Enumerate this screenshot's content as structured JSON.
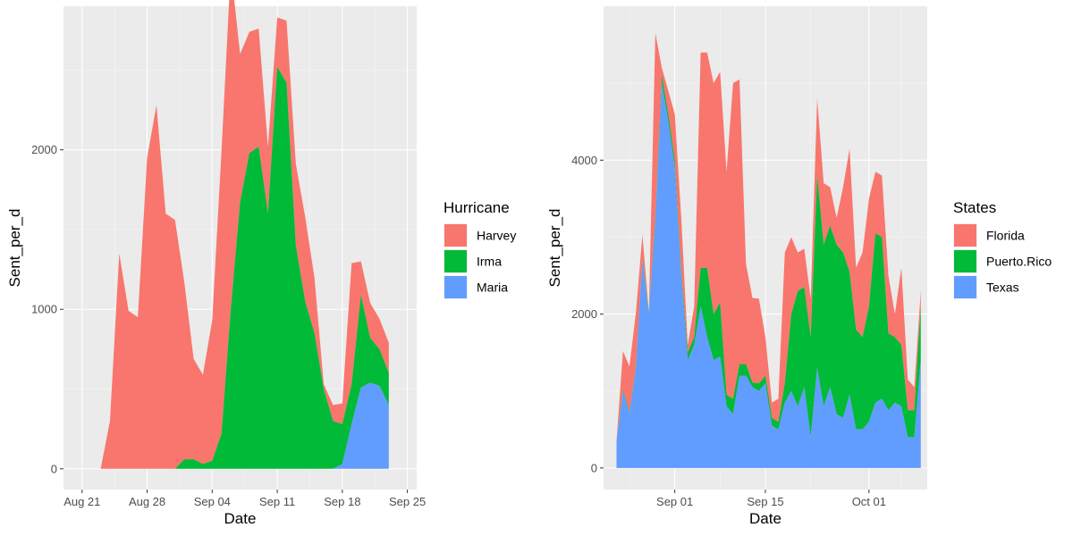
{
  "chart_data": [
    {
      "type": "area",
      "stacked": true,
      "xlabel": "Date",
      "ylabel": "Sent_per_d",
      "legend_title": "Hurricane",
      "legend_position": "right",
      "grid": true,
      "xlim": [
        "2017-08-19",
        "2017-09-26"
      ],
      "ylim": [
        -130,
        2900
      ],
      "x_ticks": [
        {
          "date": "2017-08-21",
          "label": "Aug 21"
        },
        {
          "date": "2017-08-28",
          "label": "Aug 28"
        },
        {
          "date": "2017-09-04",
          "label": "Sep 04"
        },
        {
          "date": "2017-09-11",
          "label": "Sep 11"
        },
        {
          "date": "2017-09-18",
          "label": "Sep 18"
        },
        {
          "date": "2017-09-25",
          "label": "Sep 25"
        }
      ],
      "y_ticks": [
        {
          "value": 0,
          "label": "0"
        },
        {
          "value": 1000,
          "label": "1000"
        },
        {
          "value": 2000,
          "label": "2000"
        }
      ],
      "dates": [
        "2017-08-22",
        "2017-08-23",
        "2017-08-24",
        "2017-08-25",
        "2017-08-26",
        "2017-08-27",
        "2017-08-28",
        "2017-08-29",
        "2017-08-30",
        "2017-08-31",
        "2017-09-01",
        "2017-09-02",
        "2017-09-03",
        "2017-09-04",
        "2017-09-05",
        "2017-09-06",
        "2017-09-07",
        "2017-09-08",
        "2017-09-09",
        "2017-09-10",
        "2017-09-11",
        "2017-09-12",
        "2017-09-13",
        "2017-09-14",
        "2017-09-15",
        "2017-09-16",
        "2017-09-17",
        "2017-09-18",
        "2017-09-19",
        "2017-09-20",
        "2017-09-21",
        "2017-09-22",
        "2017-09-23"
      ],
      "series": [
        {
          "name": "Maria",
          "color": "#619CFF",
          "values": [
            0,
            0,
            0,
            0,
            0,
            0,
            0,
            0,
            0,
            0,
            0,
            0,
            0,
            0,
            0,
            0,
            0,
            0,
            0,
            0,
            0,
            0,
            0,
            0,
            0,
            0,
            0,
            30,
            280,
            510,
            540,
            520,
            400
          ]
        },
        {
          "name": "Irma",
          "color": "#00BA38",
          "values": [
            0,
            0,
            0,
            0,
            0,
            0,
            0,
            0,
            0,
            0,
            60,
            60,
            30,
            50,
            220,
            1000,
            1670,
            1980,
            2020,
            1600,
            2520,
            2420,
            1400,
            1050,
            850,
            500,
            300,
            250,
            250,
            580,
            280,
            230,
            200
          ]
        },
        {
          "name": "Harvey",
          "color": "#F8766D",
          "values": [
            0,
            0,
            300,
            1350,
            990,
            950,
            1950,
            2280,
            1600,
            1560,
            1110,
            630,
            560,
            880,
            1770,
            2140,
            930,
            760,
            740,
            420,
            310,
            390,
            510,
            530,
            350,
            30,
            100,
            130,
            760,
            210,
            220,
            190,
            190
          ]
        }
      ]
    },
    {
      "type": "area",
      "stacked": true,
      "xlabel": "Date",
      "ylabel": "Sent_per_d",
      "legend_title": "States",
      "legend_position": "right",
      "grid": true,
      "xlim": [
        "2017-08-21",
        "2017-10-10"
      ],
      "ylim": [
        -280,
        6000
      ],
      "x_ticks": [
        {
          "date": "2017-09-01",
          "label": "Sep 01"
        },
        {
          "date": "2017-09-15",
          "label": "Sep 15"
        },
        {
          "date": "2017-10-01",
          "label": "Oct 01"
        }
      ],
      "y_ticks": [
        {
          "value": 0,
          "label": "0"
        },
        {
          "value": 2000,
          "label": "2000"
        },
        {
          "value": 4000,
          "label": "4000"
        }
      ],
      "dates": [
        "2017-08-23",
        "2017-08-24",
        "2017-08-25",
        "2017-08-26",
        "2017-08-27",
        "2017-08-28",
        "2017-08-29",
        "2017-08-30",
        "2017-08-31",
        "2017-09-01",
        "2017-09-02",
        "2017-09-03",
        "2017-09-04",
        "2017-09-05",
        "2017-09-06",
        "2017-09-07",
        "2017-09-08",
        "2017-09-09",
        "2017-09-10",
        "2017-09-11",
        "2017-09-12",
        "2017-09-13",
        "2017-09-14",
        "2017-09-15",
        "2017-09-16",
        "2017-09-17",
        "2017-09-18",
        "2017-09-19",
        "2017-09-20",
        "2017-09-21",
        "2017-09-22",
        "2017-09-23",
        "2017-09-24",
        "2017-09-25",
        "2017-09-26",
        "2017-09-27",
        "2017-09-28",
        "2017-09-29",
        "2017-09-30",
        "2017-10-01",
        "2017-10-02",
        "2017-10-03",
        "2017-10-04",
        "2017-10-05",
        "2017-10-06",
        "2017-10-07",
        "2017-10-08",
        "2017-10-09"
      ],
      "series": [
        {
          "name": "Texas",
          "color": "#619CFF",
          "values": [
            350,
            1000,
            700,
            1300,
            2700,
            2000,
            3200,
            5000,
            4500,
            3900,
            2500,
            1400,
            1600,
            2100,
            1700,
            1400,
            1450,
            800,
            700,
            1200,
            1200,
            1050,
            1000,
            1100,
            550,
            500,
            850,
            1000,
            800,
            1050,
            400,
            1300,
            800,
            1050,
            700,
            650,
            950,
            500,
            500,
            600,
            850,
            900,
            750,
            850,
            800,
            400,
            400,
            1400
          ]
        },
        {
          "name": "Puerto.Rico",
          "color": "#00BA38",
          "values": [
            0,
            20,
            20,
            20,
            30,
            30,
            50,
            100,
            100,
            100,
            50,
            100,
            100,
            500,
            900,
            600,
            700,
            150,
            200,
            150,
            150,
            60,
            100,
            100,
            100,
            100,
            250,
            1000,
            1500,
            1300,
            1300,
            2500,
            2100,
            2100,
            2200,
            2150,
            1600,
            1300,
            1200,
            1500,
            2200,
            2100,
            1000,
            850,
            800,
            350,
            350,
            700
          ]
        },
        {
          "name": "Florida",
          "color": "#F8766D",
          "values": [
            0,
            500,
            600,
            700,
            300,
            0,
            2400,
            100,
            300,
            600,
            700,
            100,
            400,
            2800,
            2800,
            3000,
            3000,
            2900,
            4100,
            3700,
            1300,
            1100,
            1100,
            500,
            200,
            300,
            1700,
            1000,
            500,
            500,
            500,
            1000,
            800,
            500,
            350,
            850,
            1600,
            800,
            1100,
            1400,
            800,
            800,
            750,
            300,
            1000,
            400,
            300,
            200
          ]
        }
      ]
    }
  ]
}
